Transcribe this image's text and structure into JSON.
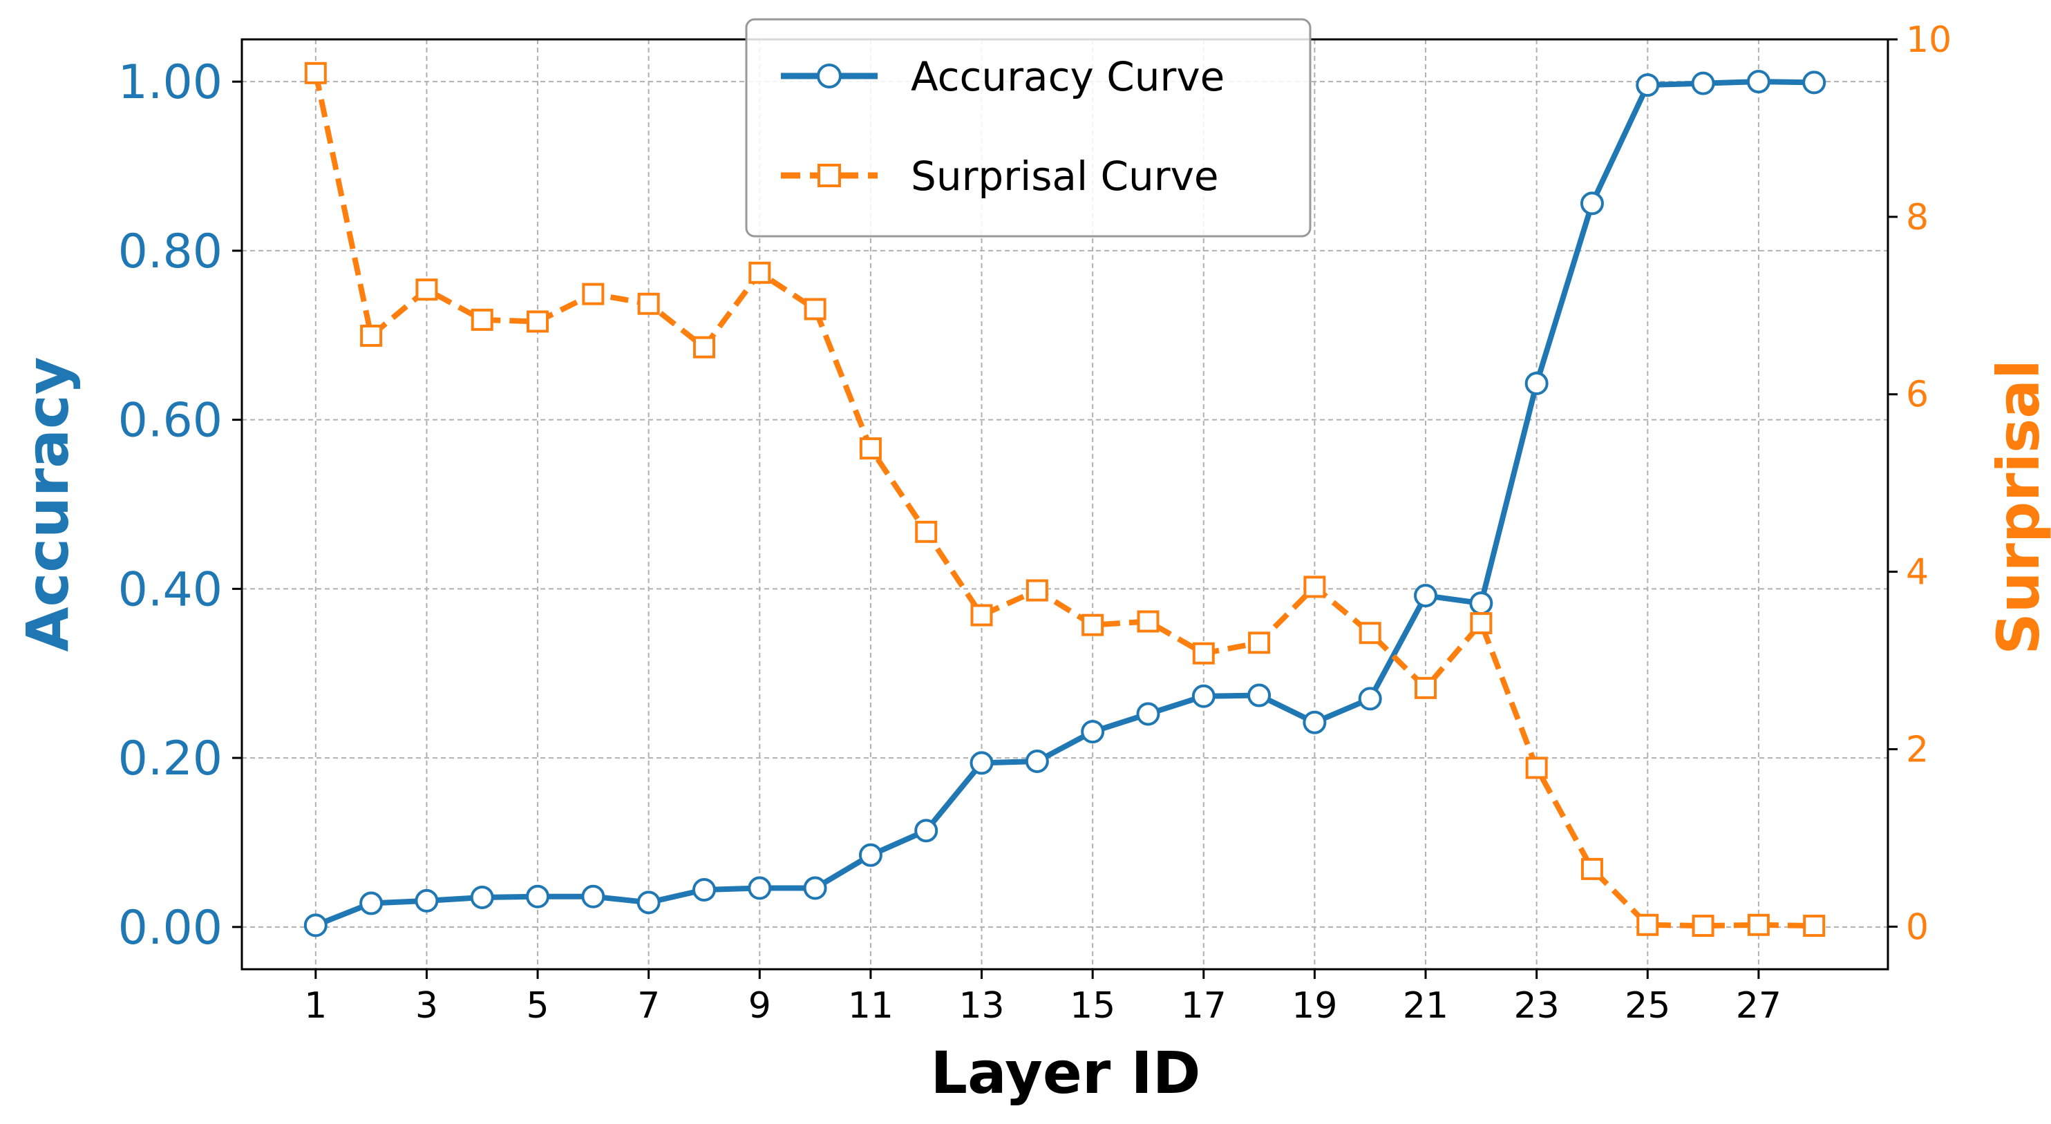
{
  "chart_data": {
    "type": "line",
    "xlabel": "Layer ID",
    "ylabel_left": "Accuracy",
    "ylabel_right": "Surprisal",
    "x": [
      1,
      2,
      3,
      4,
      5,
      6,
      7,
      8,
      9,
      10,
      11,
      12,
      13,
      14,
      15,
      16,
      17,
      18,
      19,
      20,
      21,
      22,
      23,
      24,
      25,
      26,
      27,
      28
    ],
    "x_ticks": [
      1,
      3,
      5,
      7,
      9,
      11,
      13,
      15,
      17,
      19,
      21,
      23,
      25,
      27
    ],
    "x_tick_labels": [
      "1",
      "3",
      "5",
      "7",
      "9",
      "11",
      "13",
      "15",
      "17",
      "19",
      "21",
      "23",
      "25",
      "27"
    ],
    "xlim": [
      -0.33,
      29.33
    ],
    "ylim_left": [
      -0.05,
      1.05
    ],
    "ylim_right": [
      -0.48,
      10.0
    ],
    "y_ticks_left": [
      0.0,
      0.2,
      0.4,
      0.6,
      0.8,
      1.0
    ],
    "y_tick_labels_left": [
      "0.00",
      "0.20",
      "0.40",
      "0.60",
      "0.80",
      "1.00"
    ],
    "y_ticks_right": [
      0,
      2,
      4,
      6,
      8,
      10
    ],
    "y_tick_labels_right": [
      "0",
      "2",
      "4",
      "6",
      "8",
      "10"
    ],
    "grid": true,
    "legend_position": "top-center",
    "series": [
      {
        "name": "Accuracy Curve",
        "axis": "left",
        "color": "#1f77b4",
        "line_style": "solid",
        "marker": "circle",
        "values": [
          0.002,
          0.028,
          0.031,
          0.035,
          0.036,
          0.036,
          0.029,
          0.044,
          0.046,
          0.046,
          0.085,
          0.114,
          0.194,
          0.196,
          0.231,
          0.252,
          0.273,
          0.274,
          0.242,
          0.27,
          0.392,
          0.383,
          0.643,
          0.856,
          0.996,
          0.998,
          1.0,
          0.999
        ]
      },
      {
        "name": "Surprisal Curve",
        "axis": "right",
        "color": "#ff7f0e",
        "line_style": "dashed",
        "marker": "square",
        "values": [
          9.62,
          6.66,
          7.18,
          6.84,
          6.82,
          7.13,
          7.02,
          6.53,
          7.37,
          6.96,
          5.39,
          4.45,
          3.51,
          3.79,
          3.4,
          3.44,
          3.08,
          3.2,
          3.83,
          3.31,
          2.69,
          3.42,
          1.79,
          0.65,
          0.02,
          0.01,
          0.02,
          0.01
        ]
      }
    ]
  }
}
